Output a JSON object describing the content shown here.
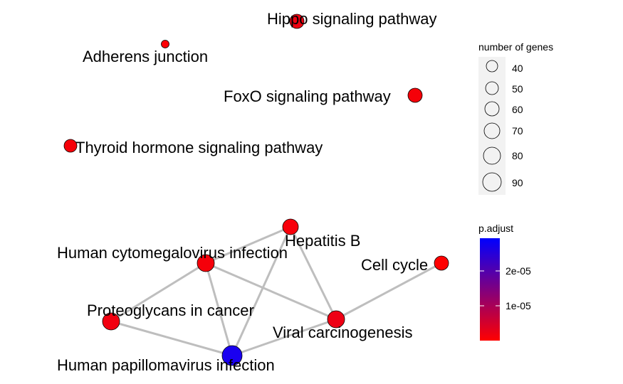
{
  "network": {
    "nodes": [
      {
        "id": "hippo",
        "label": "Hippo signaling pathway",
        "color": "#EE0010"
      },
      {
        "id": "adherens",
        "label": "Adherens junction",
        "color": "#FF0005"
      },
      {
        "id": "foxo",
        "label": "FoxO signaling pathway",
        "color": "#F50008"
      },
      {
        "id": "thyroid",
        "label": "Thyroid hormone signaling pathway",
        "color": "#F50008"
      },
      {
        "id": "hepb",
        "label": "Hepatitis B",
        "color": "#F8000B"
      },
      {
        "id": "hcmv",
        "label": "Human cytomegalovirus infection",
        "color": "#F5000A"
      },
      {
        "id": "cellcycle",
        "label": "Cell cycle",
        "color": "#FF0000"
      },
      {
        "id": "proteo",
        "label": "Proteoglycans in cancer",
        "color": "#F20010"
      },
      {
        "id": "viral",
        "label": "Viral carcinogenesis",
        "color": "#EE0014"
      },
      {
        "id": "hpv",
        "label": "Human papillomavirus infection",
        "color": "#1A00F0"
      }
    ],
    "edges": [
      [
        "hepb",
        "hcmv"
      ],
      [
        "hepb",
        "viral"
      ],
      [
        "hepb",
        "hpv"
      ],
      [
        "hcmv",
        "proteo"
      ],
      [
        "hcmv",
        "viral"
      ],
      [
        "hcmv",
        "hpv"
      ],
      [
        "proteo",
        "hpv"
      ],
      [
        "viral",
        "hpv"
      ],
      [
        "viral",
        "cellcycle"
      ]
    ]
  },
  "legend_size": {
    "title": "number of genes",
    "items": [
      {
        "label": "40",
        "value": 40
      },
      {
        "label": "50",
        "value": 50
      },
      {
        "label": "60",
        "value": 60
      },
      {
        "label": "70",
        "value": 70
      },
      {
        "label": "80",
        "value": 80
      },
      {
        "label": "90",
        "value": 90
      }
    ]
  },
  "legend_color": {
    "title": "p.adjust",
    "low_color": "#FF0000",
    "high_color": "#0000FF",
    "ticks": [
      "2e-05",
      "1e-05"
    ]
  }
}
